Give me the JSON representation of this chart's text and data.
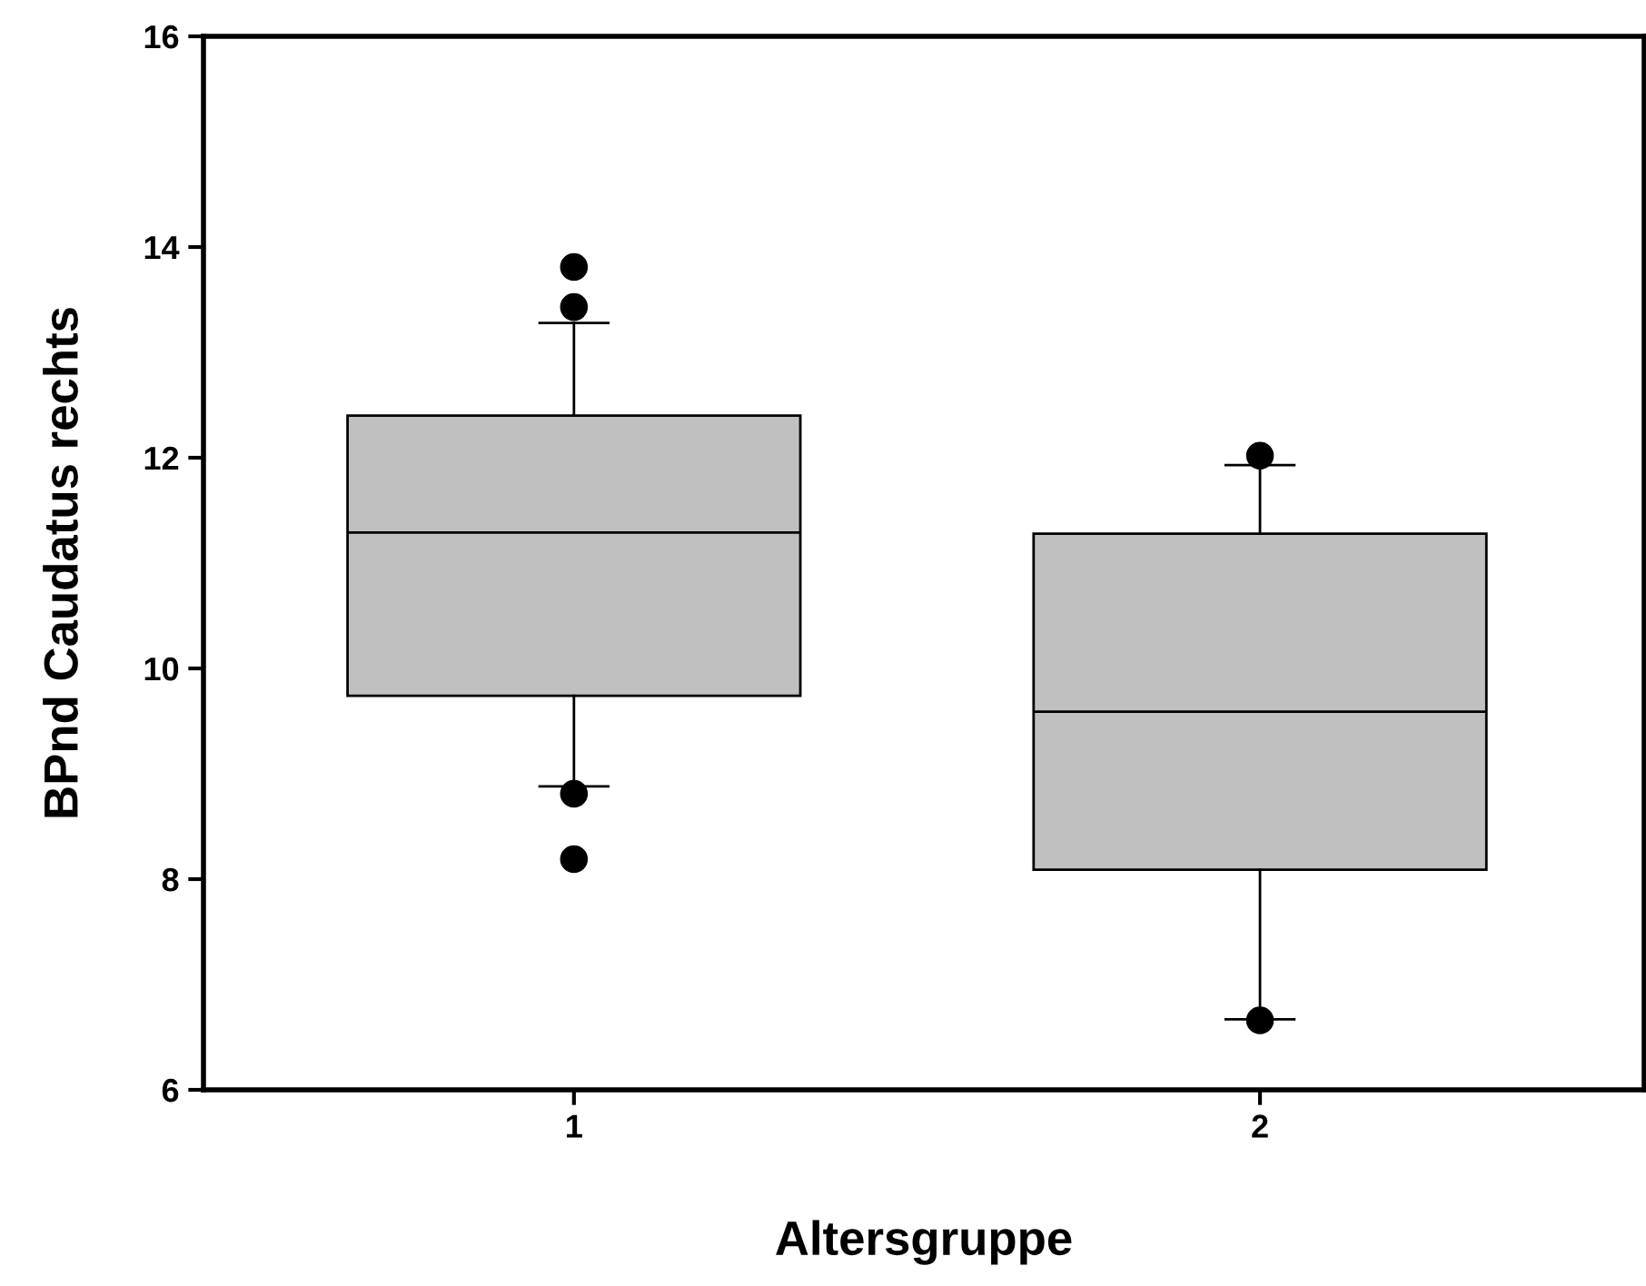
{
  "chart_data": {
    "type": "box",
    "xlabel": "Altersgruppe",
    "ylabel": "BPnd Caudatus rechts",
    "categories": [
      "1",
      "2"
    ],
    "ylim": [
      6,
      16
    ],
    "yticks": [
      6,
      8,
      10,
      12,
      14,
      16
    ],
    "grid": false,
    "color": "#c0c0c0",
    "boxes": [
      {
        "low": 8.88,
        "q1": 9.74,
        "median": 11.29,
        "q3": 12.4,
        "high": 13.28,
        "outliers": [
          13.81,
          13.43,
          8.81,
          8.19
        ]
      },
      {
        "low": 6.67,
        "q1": 8.09,
        "median": 9.59,
        "q3": 11.28,
        "high": 11.93,
        "outliers": [
          12.02,
          6.66
        ]
      }
    ]
  }
}
